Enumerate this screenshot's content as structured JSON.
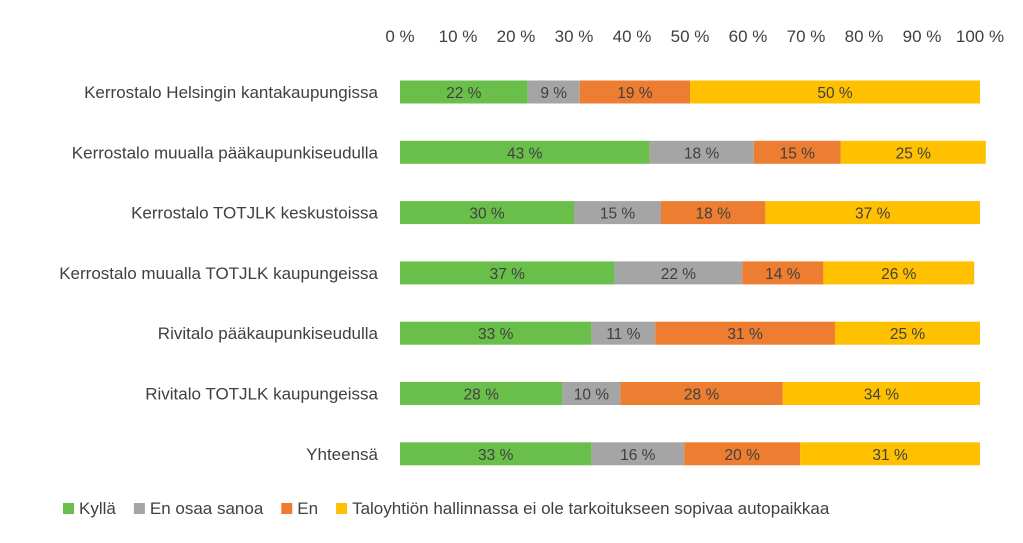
{
  "chart_data": {
    "type": "bar",
    "orientation": "horizontal",
    "stacked": "percent",
    "title": "",
    "xlabel": "",
    "ylabel": "",
    "xlim": [
      0,
      100
    ],
    "x_ticks": [
      "0 %",
      "10 %",
      "20 %",
      "30 %",
      "40 %",
      "50 %",
      "60 %",
      "70 %",
      "80 %",
      "90 %",
      "100 %"
    ],
    "tick_values": [
      0,
      10,
      20,
      30,
      40,
      50,
      60,
      70,
      80,
      90,
      100
    ],
    "categories": [
      "Kerrostalo Helsingin kantakaupungissa",
      "Kerrostalo muualla pääkaupunkiseudulla",
      "Kerrostalo TOTJLK keskustoissa",
      "Kerrostalo muualla TOTJLK kaupungeissa",
      "Rivitalo pääkaupunkiseudulla",
      "Rivitalo TOTJLK kaupungeissa",
      "Yhteensä"
    ],
    "series": [
      {
        "name": "Kyllä",
        "color": "#6abf4b",
        "values": [
          22,
          43,
          30,
          37,
          33,
          28,
          33
        ]
      },
      {
        "name": "En osaa sanoa",
        "color": "#a5a5a5",
        "values": [
          9,
          18,
          15,
          22,
          11,
          10,
          16
        ]
      },
      {
        "name": "En",
        "color": "#ed7d31",
        "values": [
          19,
          15,
          18,
          14,
          31,
          28,
          20
        ]
      },
      {
        "name": "Taloyhtiön hallinnassa ei ole tarkoitukseen sopivaa autopaikkaa",
        "color": "#ffc000",
        "values": [
          50,
          25,
          37,
          26,
          25,
          34,
          31
        ]
      }
    ],
    "data_label_suffix": " %",
    "legend_position": "bottom",
    "grid": false
  }
}
